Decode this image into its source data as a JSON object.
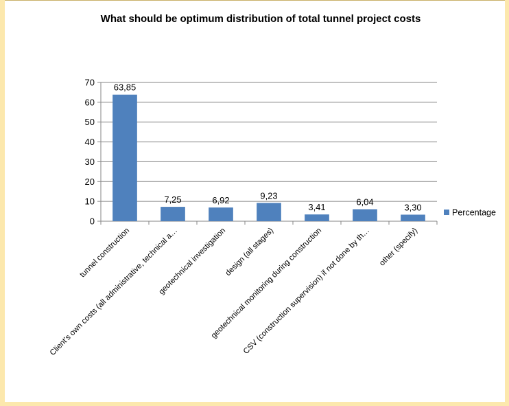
{
  "chart_data": {
    "type": "bar",
    "title": "What should be optimum distribution of total tunnel project costs",
    "categories": [
      "tunnel construction",
      "Client's own costs (all administrative, technical a…",
      "geotechnical investigation",
      "design (all stages)",
      "geotechnical monitoring during construction",
      "CSV (construction supervision) if not done by th…",
      "other (specify)"
    ],
    "series": [
      {
        "name": "Percentage",
        "values": [
          63.85,
          7.25,
          6.92,
          9.23,
          3.41,
          6.04,
          3.3
        ],
        "value_labels": [
          "63,85",
          "7,25",
          "6,92",
          "9,23",
          "3,41",
          "6,04",
          "3,30"
        ]
      }
    ],
    "ylim": [
      0,
      70
    ],
    "yticks": [
      0,
      10,
      20,
      30,
      40,
      50,
      60,
      70
    ],
    "grid": true,
    "legend_position": "right",
    "bar_color": "#4f81bd"
  }
}
